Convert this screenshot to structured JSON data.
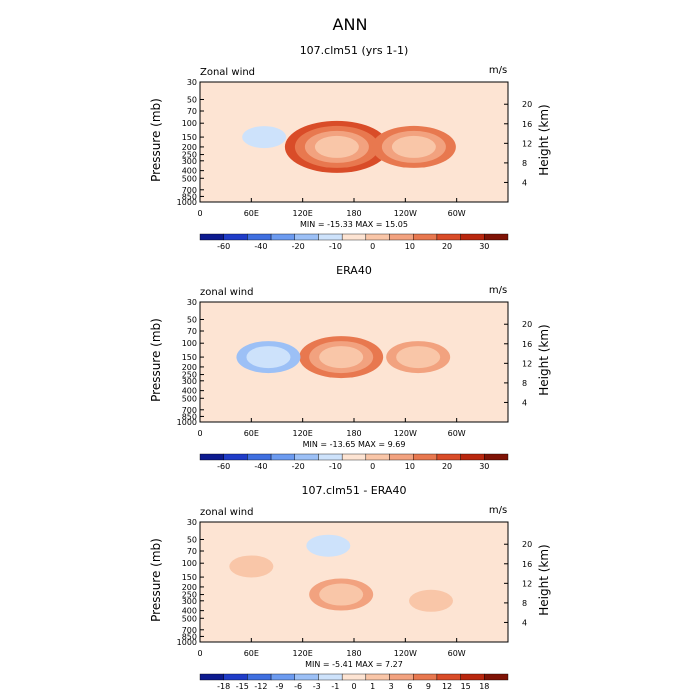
{
  "figure_title": "ANN",
  "chart_data": [
    {
      "type": "heatmap",
      "title": "107.clm51 (yrs 1-1)",
      "variable": "Zonal wind",
      "units": "m/s",
      "ylabel": "Pressure (mb)",
      "ylabel_right": "Height (km)",
      "xticks": [
        "0",
        "60E",
        "120E",
        "180",
        "120W",
        "60W"
      ],
      "yticks": [
        "30",
        "50",
        "70",
        "100",
        "150",
        "200",
        "250",
        "300",
        "400",
        "500",
        "700",
        "850",
        "1000"
      ],
      "height_ticks": [
        "4",
        "8",
        "12",
        "16",
        "20"
      ],
      "stats": "MIN = -15.33   MAX =  15.05",
      "colorbar": [
        "-60",
        "-40",
        "-20",
        "-10",
        "0",
        "10",
        "20",
        "30"
      ],
      "colors": [
        "#0c1a8f",
        "#1f3cc8",
        "#3f6fe0",
        "#6c9bf0",
        "#9cc0f6",
        "#cde2fb",
        "#fde4d3",
        "#f9c6a8",
        "#f2a27f",
        "#e8784f",
        "#d94c28",
        "#b9270e",
        "#7f1306"
      ],
      "features": [
        {
          "name": "positive",
          "lon": 160,
          "pressure": 200,
          "value": 15
        },
        {
          "name": "positive",
          "lon": 250,
          "pressure": 200,
          "value": 10
        },
        {
          "name": "negative",
          "lon": 75,
          "pressure": 150,
          "value": -5
        }
      ]
    },
    {
      "type": "heatmap",
      "title": "ERA40",
      "variable": "zonal wind",
      "units": "m/s",
      "ylabel": "Pressure (mb)",
      "ylabel_right": "Height (km)",
      "xticks": [
        "0",
        "60E",
        "120E",
        "180",
        "120W",
        "60W"
      ],
      "yticks": [
        "30",
        "50",
        "70",
        "100",
        "150",
        "200",
        "250",
        "300",
        "400",
        "500",
        "700",
        "850",
        "1000"
      ],
      "height_ticks": [
        "4",
        "8",
        "12",
        "16",
        "20"
      ],
      "stats": "MIN = -13.65   MAX =   9.69",
      "colorbar": [
        "-60",
        "-40",
        "-20",
        "-10",
        "0",
        "10",
        "20",
        "30"
      ],
      "colors": [
        "#0c1a8f",
        "#1f3cc8",
        "#3f6fe0",
        "#6c9bf0",
        "#9cc0f6",
        "#cde2fb",
        "#fde4d3",
        "#f9c6a8",
        "#f2a27f",
        "#e8784f",
        "#d94c28",
        "#b9270e",
        "#7f1306"
      ],
      "features": [
        {
          "name": "positive",
          "lon": 165,
          "pressure": 150,
          "value": 10
        },
        {
          "name": "positive",
          "lon": 255,
          "pressure": 150,
          "value": 9
        },
        {
          "name": "negative",
          "lon": 80,
          "pressure": 150,
          "value": -6
        }
      ]
    },
    {
      "type": "heatmap",
      "title": "107.clm51 - ERA40",
      "variable": "zonal wind",
      "units": "m/s",
      "ylabel": "Pressure (mb)",
      "ylabel_right": "Height (km)",
      "xticks": [
        "0",
        "60E",
        "120E",
        "180",
        "120W",
        "60W"
      ],
      "yticks": [
        "30",
        "50",
        "70",
        "100",
        "150",
        "200",
        "250",
        "300",
        "400",
        "500",
        "700",
        "850",
        "1000"
      ],
      "height_ticks": [
        "4",
        "8",
        "12",
        "16",
        "20"
      ],
      "stats": "MIN =  -5.41   MAX =   7.27",
      "colorbar": [
        "-18",
        "-15",
        "-12",
        "-9",
        "-6",
        "-3",
        "-1",
        "0",
        "1",
        "3",
        "6",
        "9",
        "12",
        "15",
        "18"
      ],
      "colors": [
        "#0c1a8f",
        "#1f3cc8",
        "#3f6fe0",
        "#6c9bf0",
        "#9cc0f6",
        "#cde2fb",
        "#fde4d3",
        "#f9c6a8",
        "#f2a27f",
        "#e8784f",
        "#d94c28",
        "#b9270e",
        "#7f1306"
      ],
      "features": [
        {
          "name": "positive",
          "lon": 165,
          "pressure": 250,
          "value": 6
        },
        {
          "name": "positive",
          "lon": 60,
          "pressure": 110,
          "value": 4
        },
        {
          "name": "positive",
          "lon": 270,
          "pressure": 300,
          "value": 4
        },
        {
          "name": "negative",
          "lon": 150,
          "pressure": 60,
          "value": -4
        }
      ]
    }
  ]
}
